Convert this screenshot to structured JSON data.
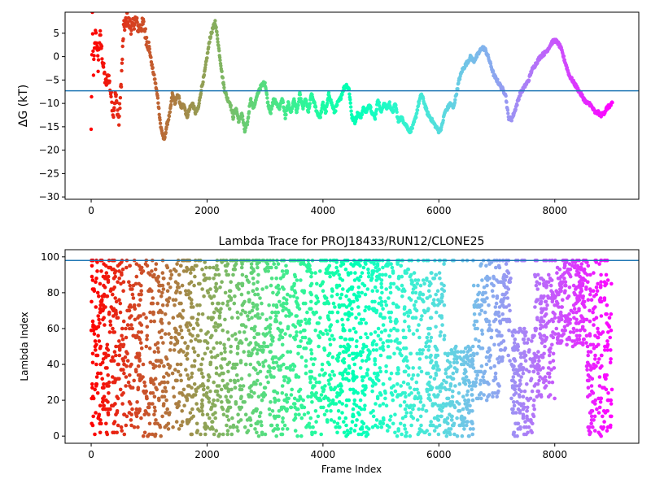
{
  "chart_data": [
    {
      "type": "scatter",
      "title": "",
      "xlabel": "",
      "ylabel": "ΔG (kT)",
      "xlim": [
        -450,
        9450
      ],
      "ylim": [
        -30.5,
        9.5
      ],
      "xticks": [
        0,
        2000,
        4000,
        6000,
        8000
      ],
      "yticks": [
        -30,
        -25,
        -20,
        -15,
        -10,
        -5,
        0,
        5
      ],
      "hline": -7.3,
      "hline_color": "#1f77b4",
      "colormap": "rainbow",
      "trace": [
        [
          0,
          -16
        ],
        [
          20,
          8
        ],
        [
          40,
          -3
        ],
        [
          80,
          6
        ],
        [
          120,
          -2
        ],
        [
          150,
          5
        ],
        [
          200,
          -1
        ],
        [
          250,
          -6
        ],
        [
          300,
          -4
        ],
        [
          380,
          -12
        ],
        [
          420,
          -8
        ],
        [
          480,
          -14
        ],
        [
          520,
          -5
        ],
        [
          560,
          6
        ],
        [
          620,
          8
        ],
        [
          700,
          6
        ],
        [
          760,
          8
        ],
        [
          820,
          6
        ],
        [
          900,
          7
        ],
        [
          950,
          4
        ],
        [
          1000,
          2
        ],
        [
          1050,
          -2
        ],
        [
          1100,
          -5
        ],
        [
          1150,
          -9
        ],
        [
          1200,
          -15
        ],
        [
          1260,
          -18
        ],
        [
          1300,
          -15
        ],
        [
          1360,
          -12
        ],
        [
          1400,
          -8
        ],
        [
          1450,
          -10
        ],
        [
          1500,
          -8
        ],
        [
          1550,
          -11
        ],
        [
          1600,
          -10
        ],
        [
          1650,
          -13
        ],
        [
          1700,
          -11
        ],
        [
          1750,
          -10
        ],
        [
          1800,
          -12
        ],
        [
          1850,
          -11
        ],
        [
          1900,
          -7
        ],
        [
          1950,
          -4
        ],
        [
          2000,
          0
        ],
        [
          2050,
          4
        ],
        [
          2100,
          6
        ],
        [
          2140,
          7.5
        ],
        [
          2180,
          4
        ],
        [
          2220,
          0
        ],
        [
          2260,
          -4
        ],
        [
          2300,
          -7
        ],
        [
          2350,
          -9
        ],
        [
          2400,
          -10
        ],
        [
          2450,
          -13
        ],
        [
          2500,
          -11
        ],
        [
          2550,
          -14
        ],
        [
          2600,
          -12
        ],
        [
          2650,
          -16
        ],
        [
          2700,
          -14
        ],
        [
          2750,
          -9
        ],
        [
          2800,
          -11
        ],
        [
          2850,
          -9
        ],
        [
          2900,
          -7
        ],
        [
          2950,
          -6
        ],
        [
          3000,
          -5.5
        ],
        [
          3050,
          -10
        ],
        [
          3100,
          -12
        ],
        [
          3150,
          -9
        ],
        [
          3200,
          -10
        ],
        [
          3250,
          -11
        ],
        [
          3300,
          -9
        ],
        [
          3350,
          -13
        ],
        [
          3400,
          -10
        ],
        [
          3450,
          -12
        ],
        [
          3500,
          -9
        ],
        [
          3550,
          -12
        ],
        [
          3600,
          -8
        ],
        [
          3650,
          -11
        ],
        [
          3700,
          -9
        ],
        [
          3750,
          -12
        ],
        [
          3800,
          -8
        ],
        [
          3850,
          -10
        ],
        [
          3900,
          -12
        ],
        [
          3950,
          -13
        ],
        [
          4000,
          -10
        ],
        [
          4050,
          -12
        ],
        [
          4100,
          -8
        ],
        [
          4150,
          -10
        ],
        [
          4200,
          -12
        ],
        [
          4250,
          -10
        ],
        [
          4300,
          -9
        ],
        [
          4350,
          -7
        ],
        [
          4400,
          -6
        ],
        [
          4450,
          -7
        ],
        [
          4500,
          -13
        ],
        [
          4550,
          -14
        ],
        [
          4600,
          -12
        ],
        [
          4650,
          -13
        ],
        [
          4700,
          -11
        ],
        [
          4750,
          -12
        ],
        [
          4800,
          -10
        ],
        [
          4850,
          -12
        ],
        [
          4900,
          -13
        ],
        [
          4950,
          -9
        ],
        [
          5000,
          -12
        ],
        [
          5050,
          -10
        ],
        [
          5100,
          -11
        ],
        [
          5150,
          -10
        ],
        [
          5200,
          -12
        ],
        [
          5250,
          -10
        ],
        [
          5300,
          -14
        ],
        [
          5350,
          -13
        ],
        [
          5400,
          -14
        ],
        [
          5450,
          -15
        ],
        [
          5500,
          -16
        ],
        [
          5550,
          -15
        ],
        [
          5600,
          -13
        ],
        [
          5650,
          -10
        ],
        [
          5700,
          -8
        ],
        [
          5750,
          -10
        ],
        [
          5800,
          -12
        ],
        [
          5850,
          -13
        ],
        [
          5900,
          -14
        ],
        [
          5950,
          -15
        ],
        [
          6000,
          -16
        ],
        [
          6050,
          -15
        ],
        [
          6100,
          -12
        ],
        [
          6150,
          -11
        ],
        [
          6200,
          -10
        ],
        [
          6250,
          -11
        ],
        [
          6300,
          -8
        ],
        [
          6350,
          -5
        ],
        [
          6400,
          -3
        ],
        [
          6450,
          -2
        ],
        [
          6500,
          -1
        ],
        [
          6550,
          0
        ],
        [
          6600,
          -1
        ],
        [
          6650,
          0
        ],
        [
          6700,
          1
        ],
        [
          6750,
          2
        ],
        [
          6800,
          1.5
        ],
        [
          6850,
          0
        ],
        [
          6900,
          -2
        ],
        [
          6950,
          -4
        ],
        [
          7000,
          -5
        ],
        [
          7050,
          -6
        ],
        [
          7100,
          -7
        ],
        [
          7150,
          -8
        ],
        [
          7200,
          -13
        ],
        [
          7250,
          -13.5
        ],
        [
          7300,
          -12
        ],
        [
          7350,
          -10
        ],
        [
          7400,
          -8
        ],
        [
          7450,
          -7
        ],
        [
          7500,
          -6
        ],
        [
          7550,
          -5
        ],
        [
          7600,
          -3
        ],
        [
          7650,
          -2
        ],
        [
          7700,
          -1
        ],
        [
          7750,
          0
        ],
        [
          7800,
          0.5
        ],
        [
          7850,
          1
        ],
        [
          7900,
          2
        ],
        [
          7950,
          3
        ],
        [
          8000,
          3.5
        ],
        [
          8050,
          3
        ],
        [
          8100,
          2
        ],
        [
          8150,
          0
        ],
        [
          8200,
          -2
        ],
        [
          8250,
          -4
        ],
        [
          8300,
          -5
        ],
        [
          8350,
          -6
        ],
        [
          8400,
          -7
        ],
        [
          8450,
          -8
        ],
        [
          8500,
          -9
        ],
        [
          8550,
          -10
        ],
        [
          8600,
          -10
        ],
        [
          8650,
          -11
        ],
        [
          8700,
          -12
        ],
        [
          8750,
          -12
        ],
        [
          8800,
          -12.5
        ],
        [
          8850,
          -12
        ],
        [
          8900,
          -11
        ],
        [
          8950,
          -10.5
        ],
        [
          9000,
          -10
        ]
      ]
    },
    {
      "type": "scatter",
      "title": "Lambda Trace for PROJ18433/RUN12/CLONE25",
      "xlabel": "Frame Index",
      "ylabel": "Lambda Index",
      "xlim": [
        -450,
        9450
      ],
      "ylim": [
        -4,
        104
      ],
      "xticks": [
        0,
        2000,
        4000,
        6000,
        8000
      ],
      "yticks": [
        0,
        20,
        40,
        60,
        80,
        100
      ],
      "hline": 98,
      "hline_color": "#1f77b4",
      "colormap": "rainbow",
      "n_frames": 9000
    }
  ]
}
